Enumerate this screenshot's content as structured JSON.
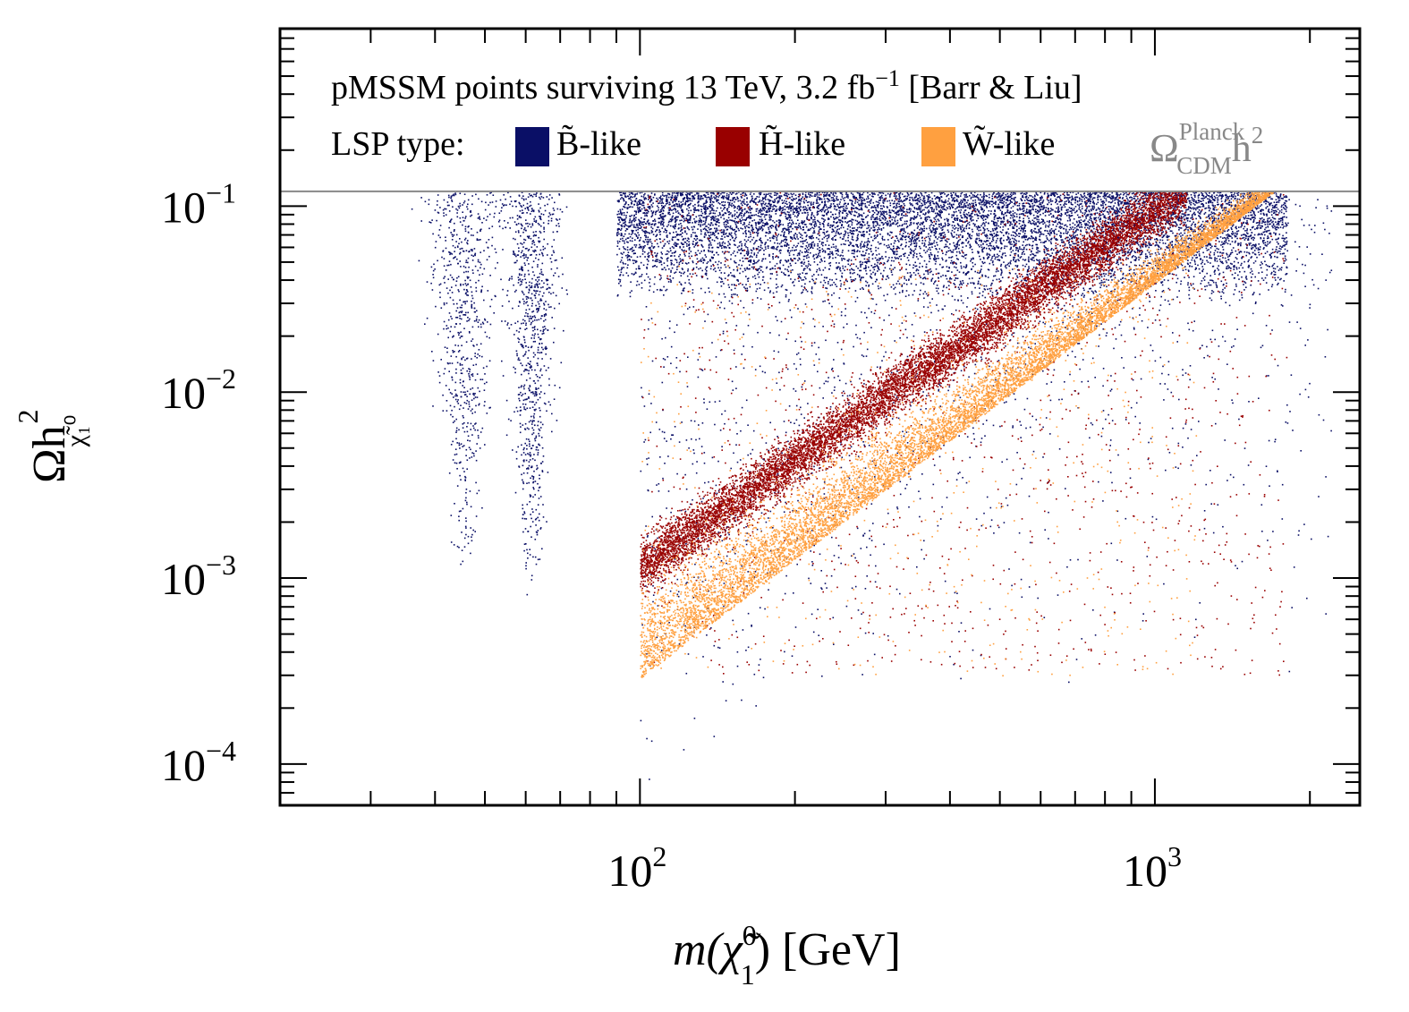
{
  "chart_data": {
    "type": "scatter",
    "title": "pMSSM points surviving 13 TeV, 3.2 fb",
    "title_superscript": "−1",
    "title_suffix": " [Barr & Liu]",
    "xscale": "log",
    "yscale": "log",
    "xlim": [
      20,
      2500
    ],
    "ylim": [
      6e-05,
      0.9
    ],
    "xlabel": "m(χ̃",
    "xlabel_sup": "0",
    "xlabel_sub": "1",
    "xlabel_suffix": ") [GeV]",
    "ylabel": "Ωh",
    "ylabel_sub": "χ̃₁⁰",
    "ylabel_sup": "2",
    "x_ticks": [
      {
        "value": 100,
        "base": "10",
        "exp": "2"
      },
      {
        "value": 1000,
        "base": "10",
        "exp": "3"
      }
    ],
    "y_ticks": [
      {
        "value": 0.1,
        "base": "10",
        "exp": "−1"
      },
      {
        "value": 0.01,
        "base": "10",
        "exp": "−2"
      },
      {
        "value": 0.001,
        "base": "10",
        "exp": "−3"
      },
      {
        "value": 0.0001,
        "base": "10",
        "exp": "−4"
      }
    ],
    "legend": {
      "prefix": "LSP type:",
      "entries": [
        {
          "label": "B̃-like",
          "color": "#0a0f66"
        },
        {
          "label": "H̃-like",
          "color": "#990000"
        },
        {
          "label": "W̃-like",
          "color": "#ffa040"
        }
      ]
    },
    "reference_line": {
      "y": 0.12,
      "label": "Ω",
      "label_sup": "Planck",
      "label_sub": "CDM",
      "label_suffix": "h",
      "label_suffix_sup": "2",
      "color": "#888888"
    },
    "series": [
      {
        "name": "B̃-like",
        "color": "#0a0f66",
        "regions": [
          {
            "kind": "funnel",
            "x_center": 45.5,
            "x_width": 0.08,
            "y_min": 0.0011,
            "y_max": 0.12,
            "count": 700
          },
          {
            "kind": "funnel",
            "x_center": 61.5,
            "x_width": 0.06,
            "y_min": 0.0008,
            "y_max": 0.12,
            "count": 900
          },
          {
            "kind": "cloud",
            "x_range": [
              90,
              1800
            ],
            "y_range": [
              0.03,
              0.12
            ],
            "count": 9000
          },
          {
            "kind": "cloud",
            "x_range": [
              100,
              2200
            ],
            "y_range": [
              0.0002,
              0.1
            ],
            "count": 2200
          }
        ]
      },
      {
        "name": "H̃-like",
        "color": "#990000",
        "band": {
          "x_start": 100,
          "x_end": 1150,
          "y_at_start": 0.0011,
          "y_at_end": 0.12,
          "count": 10000
        },
        "scatter": {
          "x_range": [
            100,
            1800
          ],
          "y_range": [
            0.0003,
            0.12
          ],
          "count": 1100
        }
      },
      {
        "name": "W̃-like",
        "color": "#ffa040",
        "band": {
          "x_start": 100,
          "x_end": 1700,
          "y_at_start": 0.00029,
          "y_at_end": 0.12,
          "count": 9000
        },
        "scatter": {
          "x_range": [
            100,
            1200
          ],
          "y_range": [
            0.0003,
            0.05
          ],
          "count": 600
        }
      }
    ]
  }
}
